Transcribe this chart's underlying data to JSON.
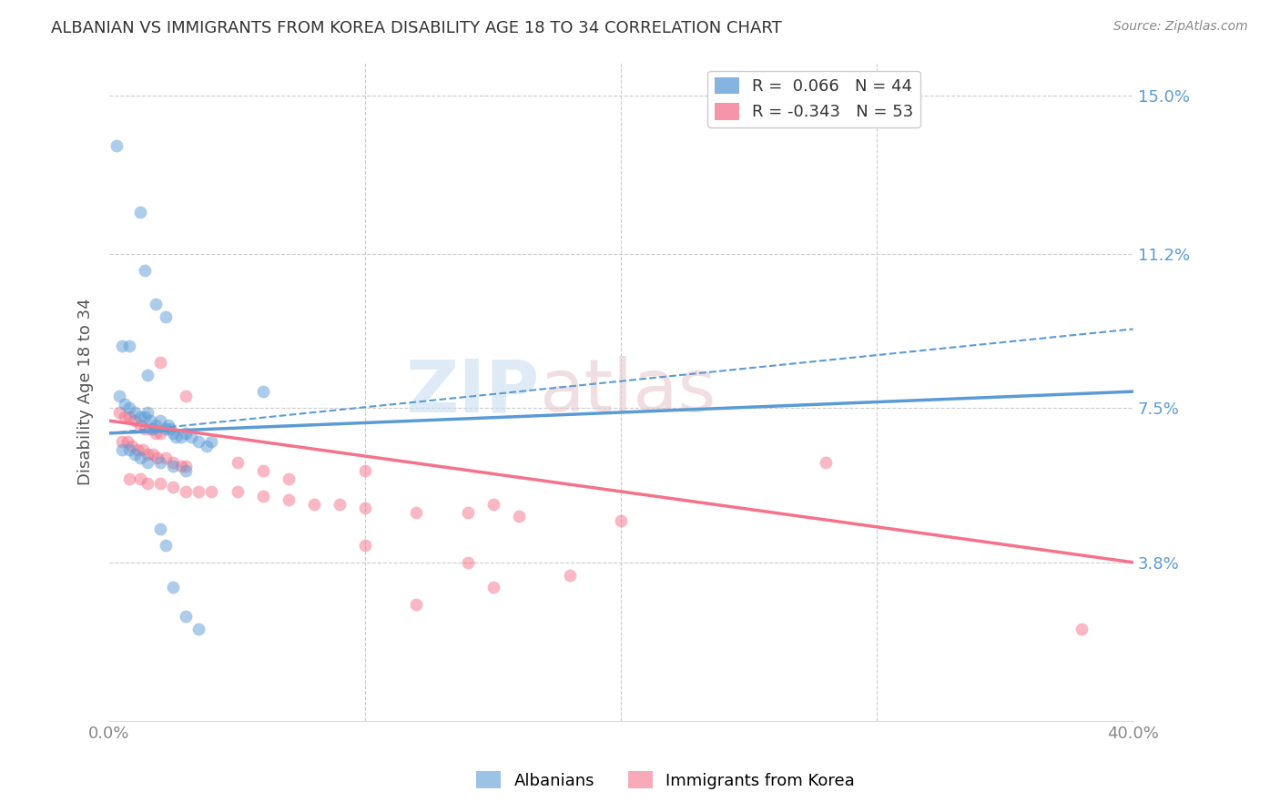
{
  "title": "ALBANIAN VS IMMIGRANTS FROM KOREA DISABILITY AGE 18 TO 34 CORRELATION CHART",
  "source": "Source: ZipAtlas.com",
  "xlabel_ticks": [
    "0.0%",
    "40.0%"
  ],
  "xlabel_tick_vals": [
    0.0,
    0.4
  ],
  "xlabel_grid_vals": [
    0.1,
    0.2,
    0.3
  ],
  "ylabel_ticks": [
    "3.8%",
    "7.5%",
    "11.2%",
    "15.0%"
  ],
  "ylabel_tick_vals": [
    0.038,
    0.075,
    0.112,
    0.15
  ],
  "xlim": [
    0.0,
    0.4
  ],
  "ylim": [
    0.0,
    0.158
  ],
  "ylabel": "Disability Age 18 to 34",
  "legend_entry1": "R =  0.066   N = 44",
  "legend_entry2": "R = -0.343   N = 53",
  "legend_color1": "#5b9bd5",
  "legend_color2": "#f4728a",
  "watermark_line1": "ZIP",
  "watermark_line2": "atlas",
  "blue_scatter": [
    [
      0.003,
      0.138
    ],
    [
      0.012,
      0.122
    ],
    [
      0.014,
      0.108
    ],
    [
      0.018,
      0.1
    ],
    [
      0.005,
      0.09
    ],
    [
      0.008,
      0.09
    ],
    [
      0.015,
      0.083
    ],
    [
      0.022,
      0.097
    ],
    [
      0.004,
      0.078
    ],
    [
      0.006,
      0.076
    ],
    [
      0.008,
      0.075
    ],
    [
      0.01,
      0.074
    ],
    [
      0.012,
      0.073
    ],
    [
      0.014,
      0.073
    ],
    [
      0.015,
      0.074
    ],
    [
      0.016,
      0.072
    ],
    [
      0.017,
      0.07
    ],
    [
      0.018,
      0.071
    ],
    [
      0.02,
      0.072
    ],
    [
      0.022,
      0.07
    ],
    [
      0.023,
      0.071
    ],
    [
      0.024,
      0.07
    ],
    [
      0.025,
      0.069
    ],
    [
      0.026,
      0.068
    ],
    [
      0.028,
      0.068
    ],
    [
      0.03,
      0.069
    ],
    [
      0.032,
      0.068
    ],
    [
      0.035,
      0.067
    ],
    [
      0.038,
      0.066
    ],
    [
      0.04,
      0.067
    ],
    [
      0.005,
      0.065
    ],
    [
      0.008,
      0.065
    ],
    [
      0.01,
      0.064
    ],
    [
      0.012,
      0.063
    ],
    [
      0.015,
      0.062
    ],
    [
      0.02,
      0.062
    ],
    [
      0.025,
      0.061
    ],
    [
      0.03,
      0.06
    ],
    [
      0.06,
      0.079
    ],
    [
      0.02,
      0.046
    ],
    [
      0.022,
      0.042
    ],
    [
      0.025,
      0.032
    ],
    [
      0.03,
      0.025
    ],
    [
      0.035,
      0.022
    ]
  ],
  "pink_scatter": [
    [
      0.004,
      0.074
    ],
    [
      0.006,
      0.073
    ],
    [
      0.008,
      0.073
    ],
    [
      0.01,
      0.072
    ],
    [
      0.012,
      0.071
    ],
    [
      0.014,
      0.07
    ],
    [
      0.016,
      0.07
    ],
    [
      0.018,
      0.069
    ],
    [
      0.02,
      0.069
    ],
    [
      0.005,
      0.067
    ],
    [
      0.007,
      0.067
    ],
    [
      0.009,
      0.066
    ],
    [
      0.011,
      0.065
    ],
    [
      0.013,
      0.065
    ],
    [
      0.015,
      0.064
    ],
    [
      0.017,
      0.064
    ],
    [
      0.019,
      0.063
    ],
    [
      0.022,
      0.063
    ],
    [
      0.025,
      0.062
    ],
    [
      0.028,
      0.061
    ],
    [
      0.03,
      0.061
    ],
    [
      0.02,
      0.086
    ],
    [
      0.03,
      0.078
    ],
    [
      0.008,
      0.058
    ],
    [
      0.012,
      0.058
    ],
    [
      0.015,
      0.057
    ],
    [
      0.02,
      0.057
    ],
    [
      0.025,
      0.056
    ],
    [
      0.03,
      0.055
    ],
    [
      0.035,
      0.055
    ],
    [
      0.04,
      0.055
    ],
    [
      0.05,
      0.055
    ],
    [
      0.06,
      0.054
    ],
    [
      0.07,
      0.053
    ],
    [
      0.08,
      0.052
    ],
    [
      0.09,
      0.052
    ],
    [
      0.1,
      0.051
    ],
    [
      0.12,
      0.05
    ],
    [
      0.14,
      0.05
    ],
    [
      0.16,
      0.049
    ],
    [
      0.05,
      0.062
    ],
    [
      0.06,
      0.06
    ],
    [
      0.07,
      0.058
    ],
    [
      0.1,
      0.06
    ],
    [
      0.15,
      0.052
    ],
    [
      0.2,
      0.048
    ],
    [
      0.14,
      0.038
    ],
    [
      0.18,
      0.035
    ],
    [
      0.28,
      0.062
    ],
    [
      0.1,
      0.042
    ],
    [
      0.15,
      0.032
    ],
    [
      0.38,
      0.022
    ],
    [
      0.12,
      0.028
    ]
  ],
  "blue_solid_line": [
    [
      0.0,
      0.069
    ],
    [
      0.4,
      0.079
    ]
  ],
  "blue_dash_line": [
    [
      0.0,
      0.069
    ],
    [
      0.4,
      0.094
    ]
  ],
  "pink_solid_line": [
    [
      0.0,
      0.072
    ],
    [
      0.4,
      0.038
    ]
  ],
  "background_color": "#ffffff",
  "plot_bg_color": "#ffffff",
  "grid_color": "#cccccc",
  "tick_color_right": "#5b9bd5",
  "tick_color_bottom": "#888888",
  "scatter_alpha": 0.5,
  "scatter_size": 100
}
